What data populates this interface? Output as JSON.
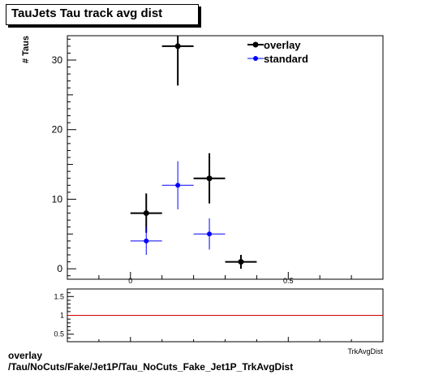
{
  "title": "TauJets Tau track avg dist",
  "footer": {
    "line1": "overlay",
    "line2": "/Tau/NoCuts/Fake/Jet1P/Tau_NoCuts_Fake_Jet1P_TrkAvgDist"
  },
  "colors": {
    "overlay": "#000000",
    "standard": "#0000ff",
    "ratio_line": "#cc0000"
  },
  "chart_data": [
    {
      "type": "scatter",
      "title": "TauJets Tau track avg dist",
      "xlabel": "TrkAvgDist",
      "ylabel": "# Taus",
      "xlim": [
        -0.2,
        0.8
      ],
      "ylim": [
        -1.5,
        33.5
      ],
      "x_ticks": [
        0,
        0.5
      ],
      "x_tick_labels": [
        "0",
        "0.5"
      ],
      "y_ticks": [
        0,
        10,
        20,
        30
      ],
      "y_tick_labels": [
        "0",
        "10",
        "20",
        "30"
      ],
      "legend_position": "top-right",
      "series": [
        {
          "name": "overlay",
          "color": "#000000",
          "points": [
            {
              "x": 0.05,
              "y": 8,
              "xerr": 0.05,
              "yerr": 2.83
            },
            {
              "x": 0.15,
              "y": 32,
              "xerr": 0.05,
              "yerr": 5.66
            },
            {
              "x": 0.25,
              "y": 13,
              "xerr": 0.05,
              "yerr": 3.61
            },
            {
              "x": 0.35,
              "y": 1,
              "xerr": 0.05,
              "yerr": 1.0
            }
          ]
        },
        {
          "name": "standard",
          "color": "#0000ff",
          "points": [
            {
              "x": 0.05,
              "y": 4,
              "xerr": 0.05,
              "yerr": 2.0
            },
            {
              "x": 0.15,
              "y": 12,
              "xerr": 0.05,
              "yerr": 3.46
            },
            {
              "x": 0.25,
              "y": 5,
              "xerr": 0.05,
              "yerr": 2.24
            }
          ]
        }
      ]
    },
    {
      "type": "line",
      "xlim": [
        -0.2,
        0.8
      ],
      "ylim": [
        0.3,
        1.7
      ],
      "x_ticks": [
        0,
        0.5
      ],
      "x_tick_labels": [
        "0",
        "0.5"
      ],
      "y_ticks": [
        0.5,
        1,
        1.5
      ],
      "y_tick_labels": [
        "0.5",
        "1",
        "1.5"
      ],
      "reference_line": 1
    }
  ]
}
